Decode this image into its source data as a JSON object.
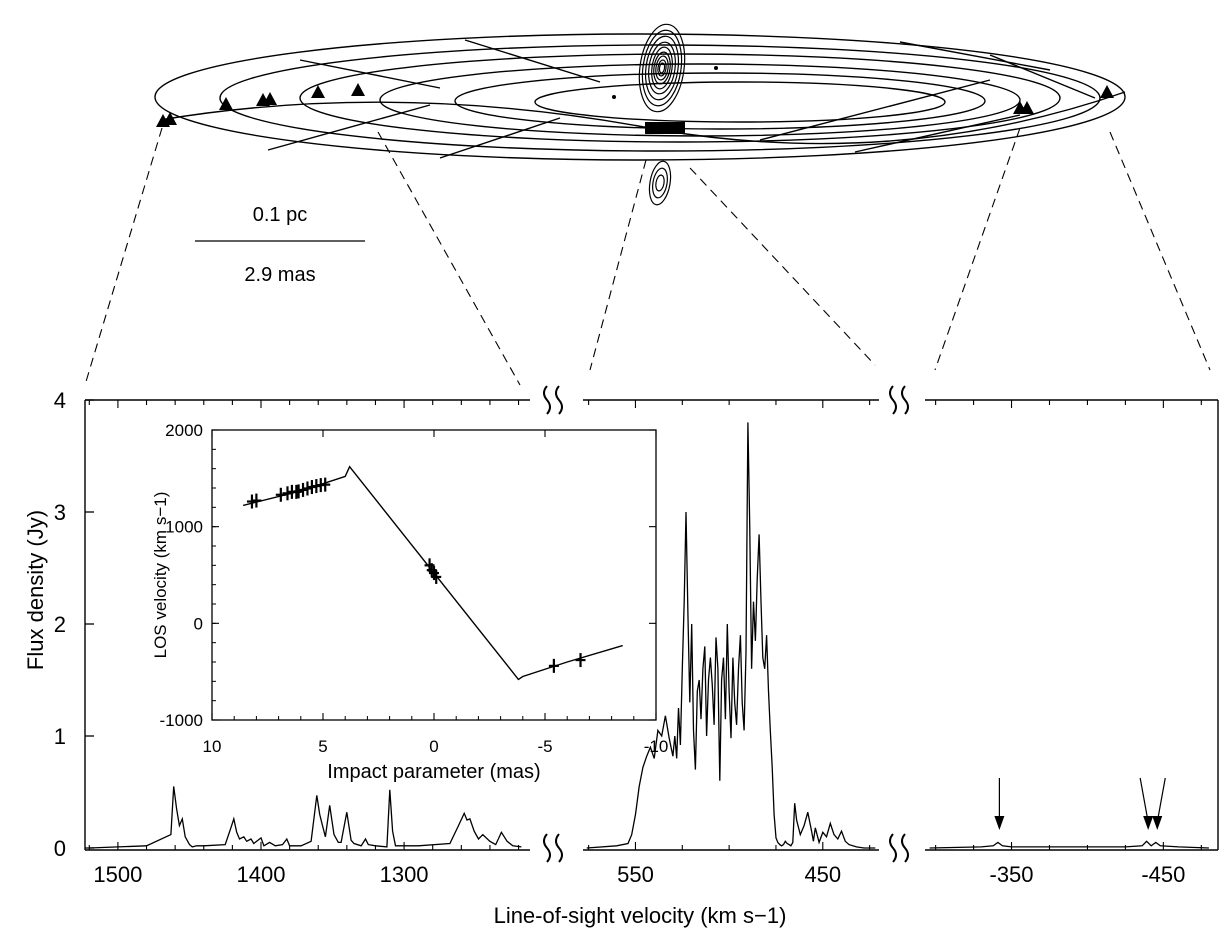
{
  "colors": {
    "ink": "#000000",
    "background": "#ffffff"
  },
  "scale_bar": {
    "top_label": "0.1 pc",
    "bottom_label": "2.9 mas"
  },
  "chart_data": [
    {
      "type": "line",
      "xlabel": "Line-of-sight velocity (km s−1)",
      "ylabel": "Flux density (Jy)",
      "ylim": [
        0,
        4
      ],
      "yticks": [
        "0",
        "1",
        "2",
        "3",
        "4"
      ],
      "axis_breaks": 2,
      "grid": false,
      "panels": [
        {
          "xlim": [
            1523,
            1212
          ],
          "xticks": [
            1500,
            1400,
            1300
          ],
          "xtick_labels": [
            "1500",
            "1400",
            "1300"
          ],
          "x": [
            1520,
            1480,
            1463,
            1461,
            1459,
            1457,
            1455,
            1453,
            1450,
            1448,
            1445,
            1440,
            1425,
            1421,
            1419,
            1417,
            1415,
            1412,
            1410,
            1407,
            1405,
            1400,
            1398,
            1394,
            1390,
            1385,
            1382,
            1380,
            1372,
            1365,
            1361,
            1359,
            1357,
            1355,
            1352,
            1349,
            1346,
            1344,
            1340,
            1337,
            1335,
            1330,
            1327,
            1325,
            1320,
            1312,
            1310,
            1308,
            1306,
            1290,
            1268,
            1262,
            1258,
            1256,
            1254,
            1251,
            1248,
            1245,
            1240,
            1236,
            1232,
            1228,
            1224,
            1218
          ],
          "y": [
            0,
            0.02,
            0.12,
            0.55,
            0.35,
            0.2,
            0.26,
            0.1,
            0.03,
            0.01,
            0.02,
            0.02,
            0.03,
            0.18,
            0.26,
            0.14,
            0.08,
            0.1,
            0.06,
            0.08,
            0.04,
            0.09,
            0.02,
            0.05,
            0.02,
            0.03,
            0.08,
            0.02,
            0.02,
            0.06,
            0.47,
            0.3,
            0.2,
            0.1,
            0.38,
            0.12,
            0.05,
            0.05,
            0.32,
            0.07,
            0.04,
            0.02,
            0.08,
            0.03,
            0.02,
            0.01,
            0.52,
            0.15,
            0.02,
            0.02,
            0.04,
            0.2,
            0.31,
            0.25,
            0.26,
            0.15,
            0.08,
            0.12,
            0.06,
            0.03,
            0.14,
            0.06,
            0.02,
            0.01
          ]
        },
        {
          "xlim": [
            578,
            420
          ],
          "xticks": [
            550,
            450
          ],
          "xtick_labels": [
            "550",
            "450"
          ],
          "x": [
            576,
            560,
            554,
            552,
            550,
            548,
            546,
            544,
            542,
            540,
            538,
            536,
            534,
            532,
            530,
            529,
            528,
            527,
            526,
            525,
            524,
            523,
            522,
            521,
            520,
            519,
            518,
            517,
            516,
            515,
            514,
            513,
            512,
            511,
            510,
            509,
            508,
            507,
            506,
            505,
            504,
            503,
            502,
            501,
            500,
            499,
            498,
            497,
            496,
            495,
            494,
            493,
            492,
            491,
            490,
            489,
            488,
            487,
            486,
            485,
            484,
            483,
            482,
            481,
            480,
            479,
            478,
            477,
            476,
            475,
            474,
            473,
            472,
            471,
            470,
            469,
            468,
            467,
            466,
            465,
            464,
            462,
            460,
            458,
            456,
            455,
            454,
            452,
            450,
            448,
            446,
            444,
            442,
            440,
            438,
            436,
            432,
            428,
            422
          ],
          "y": [
            0,
            0.02,
            0.04,
            0.12,
            0.3,
            0.55,
            0.72,
            0.82,
            0.9,
            0.8,
            1.05,
            1.0,
            1.18,
            0.98,
            0.82,
            1.0,
            0.8,
            1.25,
            0.92,
            1.6,
            2.2,
            3.0,
            2.1,
            1.3,
            2.0,
            1.05,
            0.7,
            1.4,
            1.5,
            1.15,
            1.6,
            1.8,
            1.0,
            1.5,
            1.7,
            1.45,
            1.1,
            1.88,
            1.6,
            0.6,
            1.5,
            1.7,
            1.15,
            2.0,
            1.4,
            0.98,
            1.7,
            1.3,
            1.1,
            1.6,
            1.9,
            1.3,
            1.05,
            1.75,
            3.8,
            2.9,
            1.6,
            2.2,
            1.85,
            2.4,
            2.8,
            2.2,
            1.7,
            1.6,
            1.9,
            1.4,
            1.05,
            0.72,
            0.3,
            0.09,
            0.05,
            0.03,
            0.02,
            0.03,
            0.06,
            0.04,
            0.03,
            0.02,
            0.05,
            0.4,
            0.25,
            0.12,
            0.2,
            0.32,
            0.15,
            0.06,
            0.18,
            0.05,
            0.14,
            0.1,
            0.22,
            0.12,
            0.08,
            0.15,
            0.06,
            0.03,
            0.01,
            0.0,
            0.0
          ]
        },
        {
          "xlim": [
            -293,
            -486
          ],
          "xticks": [
            -350,
            -450
          ],
          "xtick_labels": [
            "-350",
            "-450"
          ],
          "x": [
            -296,
            -330,
            -338,
            -341,
            -344,
            -350,
            -390,
            -425,
            -436,
            -439,
            -442,
            -445,
            -448,
            -460,
            -480
          ],
          "y": [
            0,
            0.01,
            0.02,
            0.05,
            0.02,
            0.01,
            0.01,
            0.01,
            0.02,
            0.06,
            0.02,
            0.05,
            0.02,
            0.01,
            0.0
          ],
          "arrows_at_x": [
            -342,
            -440,
            -446
          ]
        }
      ]
    },
    {
      "type": "scatter",
      "xlabel": "Impact parameter (mas)",
      "ylabel": "LOS velocity (km s−1)",
      "xlim": [
        10,
        -10
      ],
      "ylim": [
        -1000,
        2000
      ],
      "xticks": [
        "10",
        "5",
        "0",
        "-5",
        "-10"
      ],
      "yticks": [
        "-1000",
        "0",
        "1000",
        "2000"
      ],
      "model_curve": {
        "x": [
          8.6,
          6,
          4,
          3.8,
          -3.8,
          -4,
          -6,
          -8.5
        ],
        "y": [
          1220,
          1370,
          1520,
          1620,
          -580,
          -550,
          -400,
          -230
        ]
      },
      "points": {
        "x": [
          8.2,
          8.0,
          6.9,
          6.6,
          6.4,
          6.2,
          6.1,
          5.9,
          5.7,
          5.5,
          5.3,
          5.1,
          4.9,
          0.2,
          0.1,
          0.0,
          -0.1,
          -5.4,
          -6.6
        ],
        "y": [
          1260,
          1270,
          1330,
          1345,
          1360,
          1360,
          1365,
          1380,
          1395,
          1410,
          1420,
          1430,
          1435,
          600,
          550,
          520,
          480,
          -440,
          -380
        ]
      }
    }
  ]
}
